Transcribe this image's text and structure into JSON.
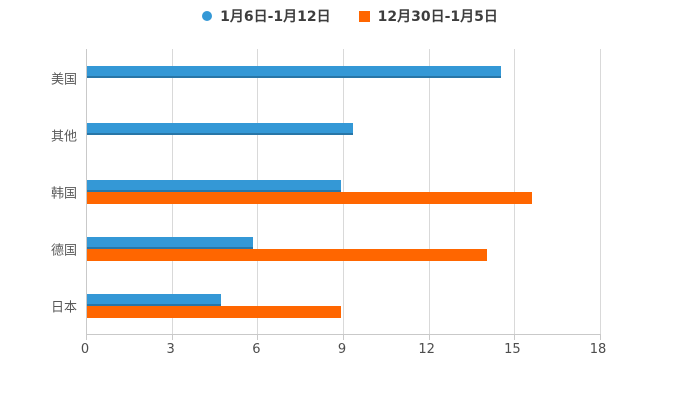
{
  "colors": {
    "series_blue": "#3498d6",
    "series_orange": "#ff6600",
    "grid": "#d9d9d9",
    "axis": "#c9c9c9",
    "legend_text": "#3d3d3d",
    "category_text": "#595959",
    "tick_text": "#4d4d4d",
    "background": "#ffffff"
  },
  "chart_data": {
    "type": "bar",
    "orientation": "horizontal",
    "title": "",
    "xlabel": "",
    "ylabel": "",
    "categories": [
      "美国",
      "其他",
      "韩国",
      "德国",
      "日本"
    ],
    "series": [
      {
        "name": "1月6日-1月12日",
        "color": "#3498d6",
        "marker": "circle",
        "values": [
          14.5,
          9.3,
          8.9,
          5.8,
          4.7
        ]
      },
      {
        "name": "12月30日-1月5日",
        "color": "#ff6600",
        "marker": "square",
        "values": [
          null,
          null,
          15.6,
          14.0,
          8.9
        ]
      }
    ],
    "xlim": [
      0,
      18
    ],
    "xticks": [
      0,
      3,
      6,
      9,
      12,
      15,
      18
    ],
    "grid": true,
    "legend_position": "top"
  }
}
